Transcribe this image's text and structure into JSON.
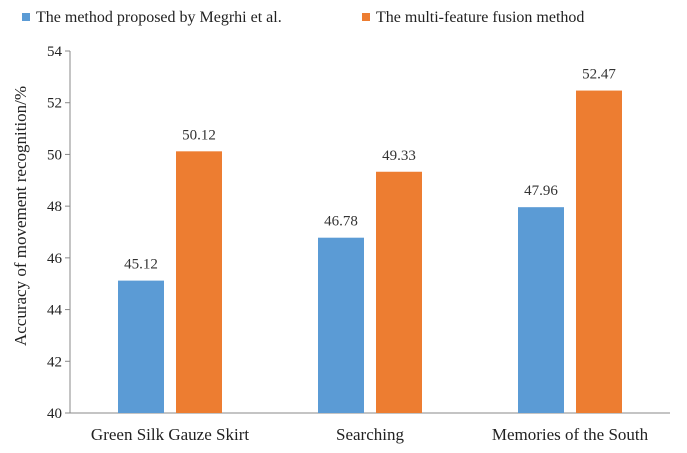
{
  "chart_data": {
    "type": "bar",
    "title": "",
    "xlabel": "",
    "ylabel": "Accuracy of movement recognition/%",
    "categories": [
      "Green Silk Gauze Skirt",
      "Searching",
      "Memories of the South"
    ],
    "series": [
      {
        "name": "The method proposed by Megrhi et al.",
        "color": "#5b9bd5",
        "values": [
          45.12,
          46.78,
          47.96
        ],
        "labels": [
          "45.12",
          "46.78",
          "47.96"
        ]
      },
      {
        "name": "The multi-feature fusion method",
        "color": "#ed7d31",
        "values": [
          50.12,
          49.33,
          52.47
        ],
        "labels": [
          "50.12",
          "49.33",
          "52.47"
        ]
      }
    ],
    "ylim": [
      40,
      54
    ],
    "yticks": [
      "40",
      "42",
      "44",
      "46",
      "48",
      "50",
      "52",
      "54"
    ],
    "grid": false,
    "legend_position": "top"
  }
}
